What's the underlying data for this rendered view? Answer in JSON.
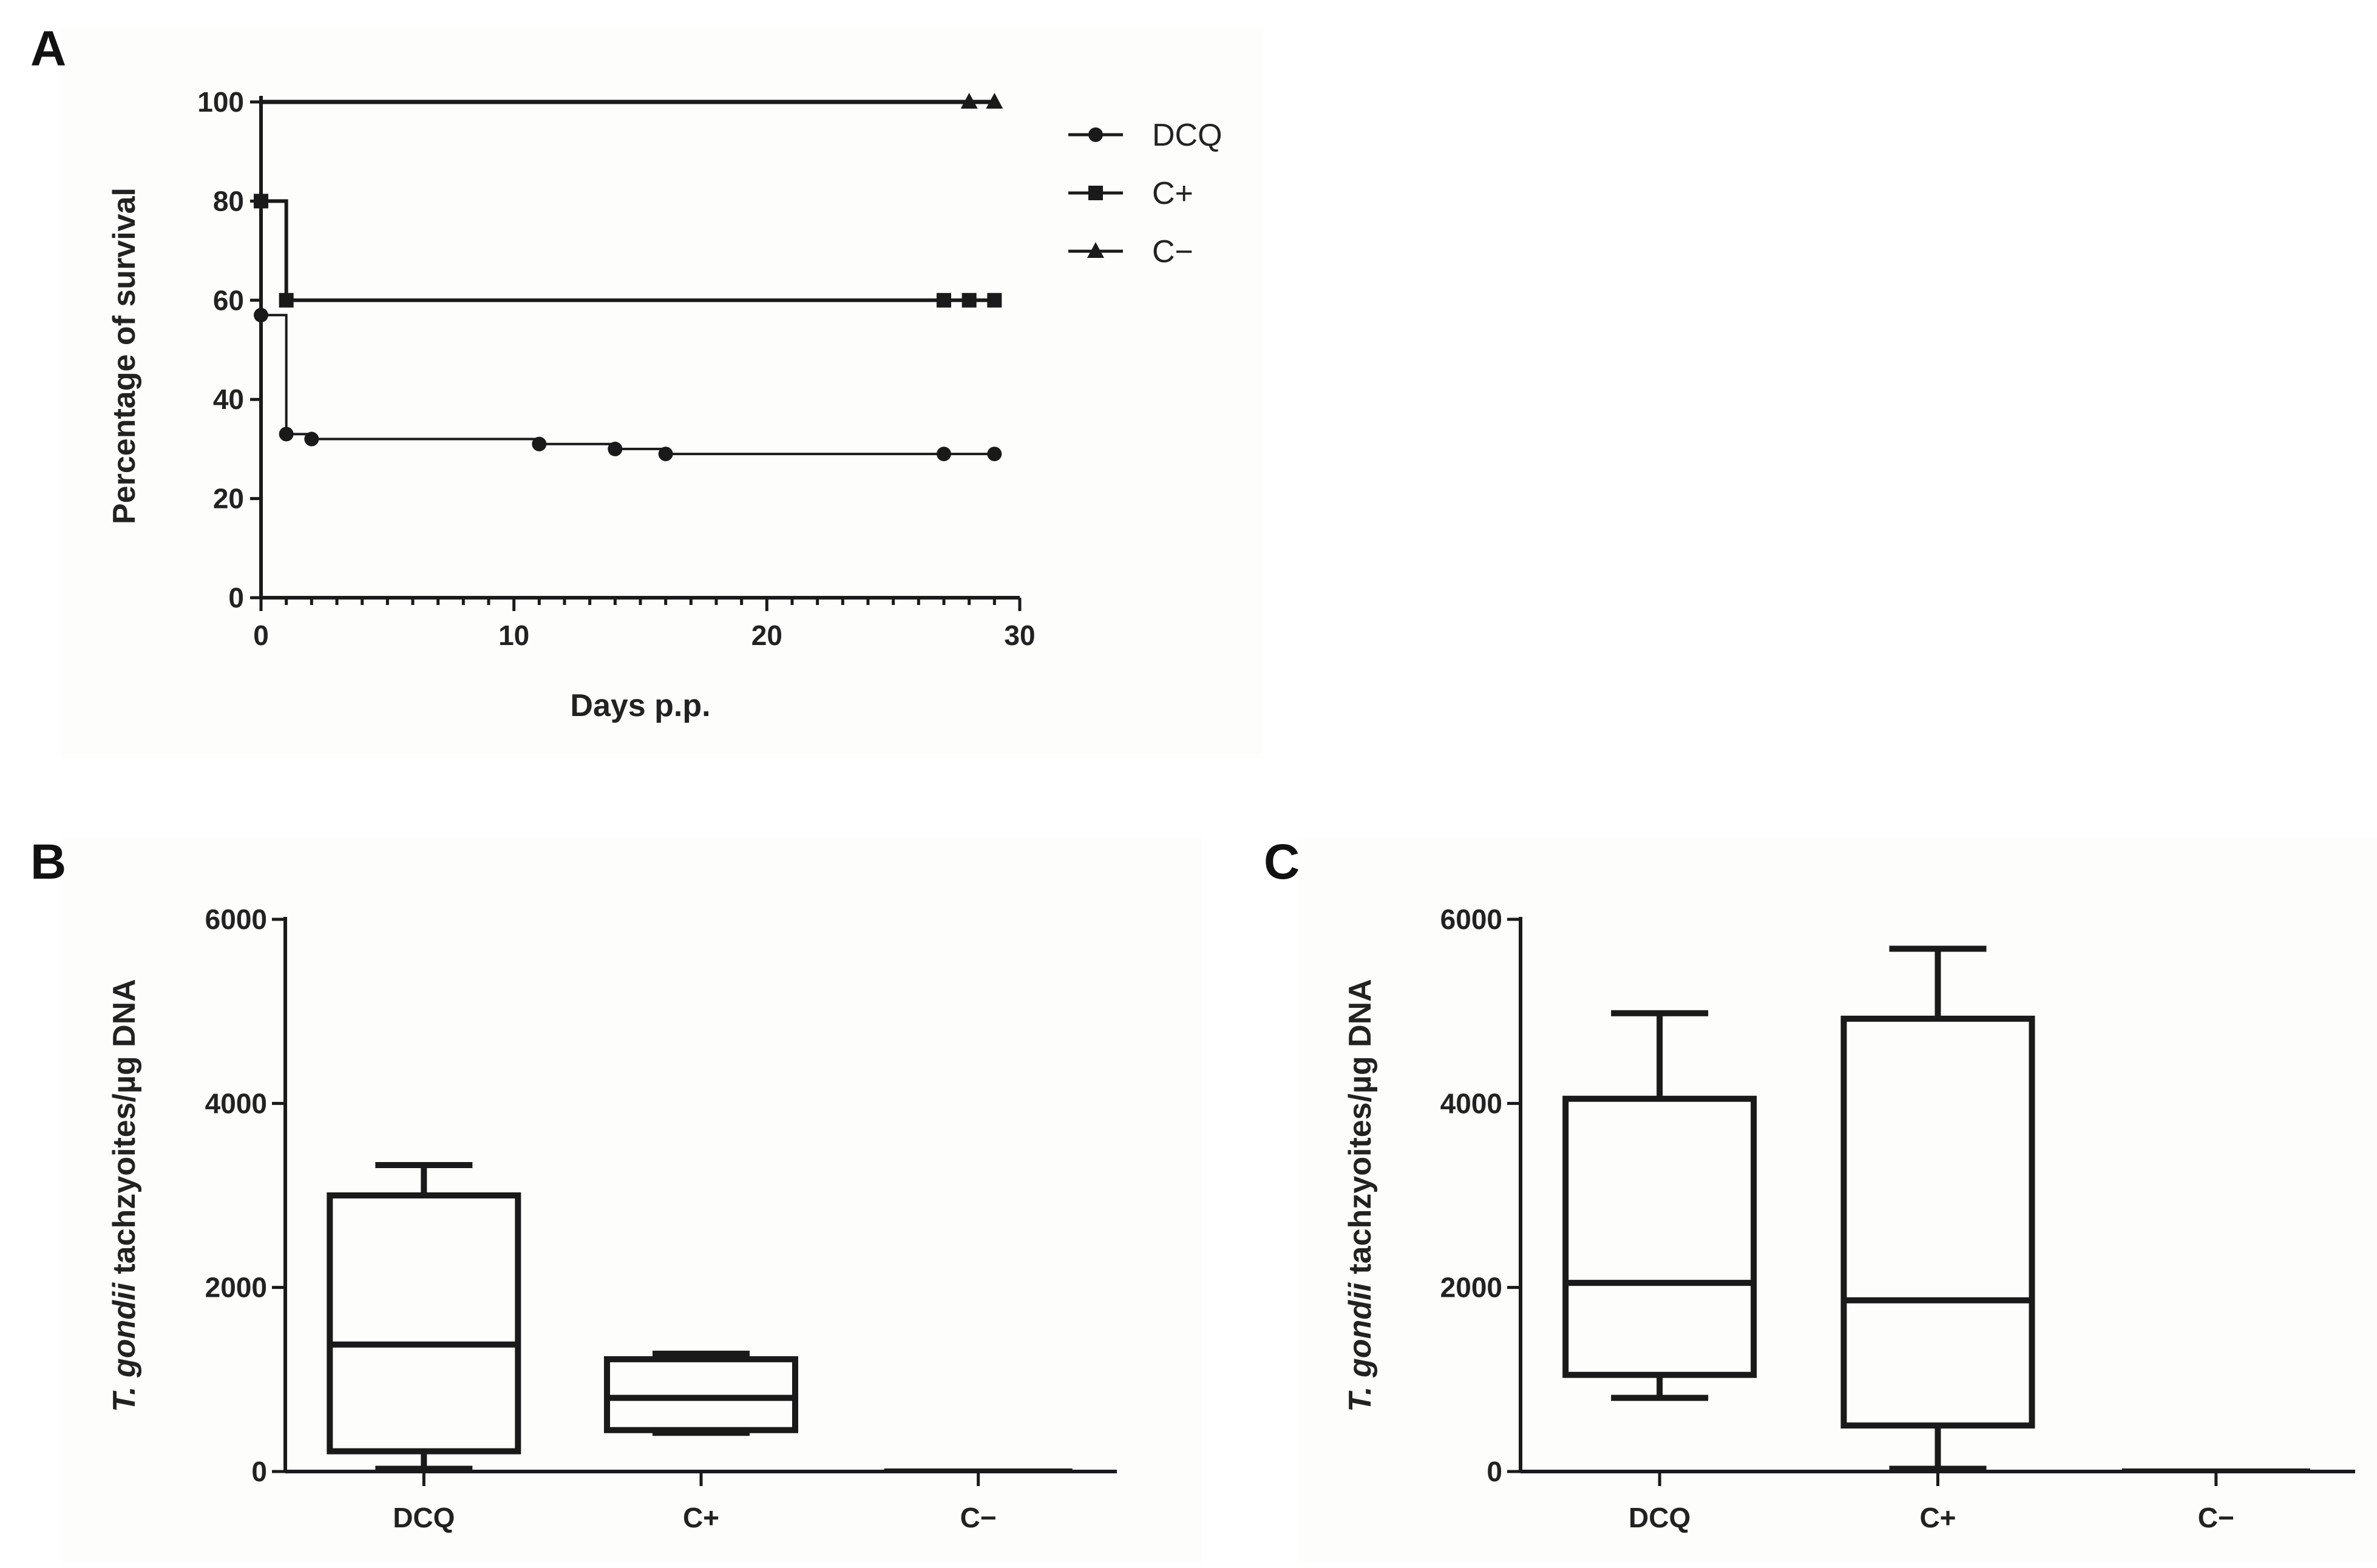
{
  "chart_data": [
    {
      "panel": "A",
      "type": "line",
      "subtype": "kaplan-meier",
      "xlabel": "Days p.p.",
      "ylabel": "Percentage of survival",
      "xlim": [
        0,
        30
      ],
      "ylim": [
        0,
        100
      ],
      "xticks": [
        "0",
        "10",
        "20",
        "30"
      ],
      "yticks": [
        "0",
        "20",
        "40",
        "60",
        "80",
        "100"
      ],
      "legend": {
        "placement": "top-right"
      },
      "series": [
        {
          "name": "DCQ",
          "marker": "circle",
          "steps": [
            [
              0,
              57
            ],
            [
              1,
              33
            ],
            [
              2,
              32
            ],
            [
              11,
              31
            ],
            [
              14,
              30
            ],
            [
              16,
              29
            ],
            [
              29,
              29
            ]
          ],
          "points": [
            [
              0,
              57
            ],
            [
              1,
              33
            ],
            [
              2,
              32
            ],
            [
              11,
              31
            ],
            [
              14,
              30
            ],
            [
              16,
              29
            ],
            [
              27,
              29
            ],
            [
              29,
              29
            ]
          ]
        },
        {
          "name": "C+",
          "marker": "square",
          "steps": [
            [
              0,
              80
            ],
            [
              1,
              60
            ],
            [
              29,
              60
            ]
          ],
          "points": [
            [
              0,
              80
            ],
            [
              1,
              60
            ],
            [
              27,
              60
            ],
            [
              28,
              60
            ],
            [
              29,
              60
            ]
          ]
        },
        {
          "name": "C−",
          "marker": "triangle",
          "steps": [
            [
              0,
              100
            ],
            [
              29,
              100
            ]
          ],
          "points": [
            [
              28,
              100
            ],
            [
              29,
              100
            ]
          ]
        }
      ]
    },
    {
      "panel": "B",
      "type": "box",
      "ylabel_italic": "T. gondii",
      "ylabel_rest": " tachzyoites/µg DNA",
      "ylim": [
        0,
        6000
      ],
      "yticks": [
        "0",
        "2000",
        "4000",
        "6000"
      ],
      "categories": [
        "DCQ",
        "C+",
        "C−"
      ],
      "boxes": [
        {
          "min": 30,
          "q1": 220,
          "median": 1380,
          "q3": 3000,
          "max": 3330
        },
        {
          "min": 420,
          "q1": 450,
          "median": 800,
          "q3": 1220,
          "max": 1280
        },
        {
          "min": 0,
          "q1": 0,
          "median": 0,
          "q3": 0,
          "max": 0
        }
      ]
    },
    {
      "panel": "C",
      "type": "box",
      "ylabel_italic": "T. gondii",
      "ylabel_rest": " tachzyoites/µg DNA",
      "ylim": [
        0,
        6000
      ],
      "yticks": [
        "0",
        "2000",
        "4000",
        "6000"
      ],
      "categories": [
        "DCQ",
        "C+",
        "C−"
      ],
      "boxes": [
        {
          "min": 800,
          "q1": 1050,
          "median": 2050,
          "q3": 4050,
          "max": 4980
        },
        {
          "min": 30,
          "q1": 500,
          "median": 1860,
          "q3": 4920,
          "max": 5680
        },
        {
          "min": 0,
          "q1": 0,
          "median": 0,
          "q3": 0,
          "max": 0
        }
      ]
    }
  ]
}
